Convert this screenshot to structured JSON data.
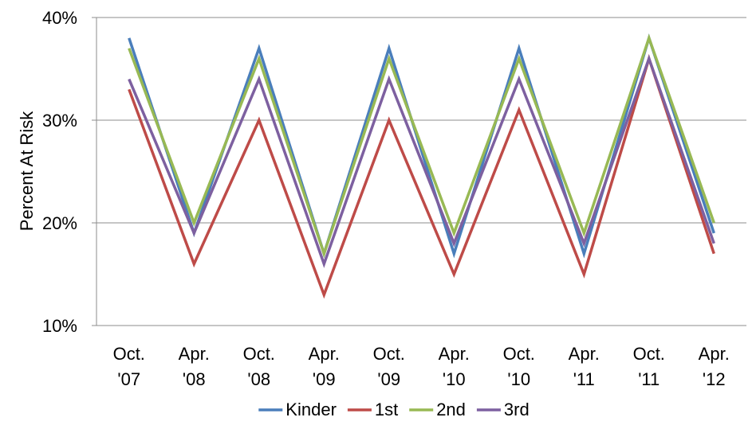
{
  "chart_data": {
    "type": "line",
    "title": "",
    "xlabel": "",
    "ylabel": "Percent At Risk",
    "categories": [
      [
        "Oct.",
        "'07"
      ],
      [
        "Apr.",
        "'08"
      ],
      [
        "Oct.",
        "'08"
      ],
      [
        "Apr.",
        "'09"
      ],
      [
        "Oct.",
        "'09"
      ],
      [
        "Apr.",
        "'10"
      ],
      [
        "Oct.",
        "'10"
      ],
      [
        "Apr.",
        "'11"
      ],
      [
        "Oct.",
        "'11"
      ],
      [
        "Apr.",
        "'12"
      ]
    ],
    "ylim": [
      10,
      40
    ],
    "yticks": [
      10,
      20,
      30,
      40
    ],
    "ytick_labels": [
      "10%",
      "20%",
      "30%",
      "40%"
    ],
    "grid": "horizontal",
    "legend_position": "bottom",
    "series": [
      {
        "name": "Kinder",
        "color": "#4a7ebb",
        "values": [
          38,
          19,
          37,
          17,
          37,
          17,
          37,
          17,
          38,
          19
        ]
      },
      {
        "name": "1st",
        "color": "#be4b48",
        "values": [
          33,
          16,
          30,
          13,
          30,
          15,
          31,
          15,
          36,
          17
        ]
      },
      {
        "name": "2nd",
        "color": "#98b954",
        "values": [
          37,
          20,
          36,
          17,
          36,
          19,
          36,
          19,
          38,
          20
        ]
      },
      {
        "name": "3rd",
        "color": "#7d60a0",
        "values": [
          34,
          19,
          34,
          16,
          34,
          18,
          34,
          18,
          36,
          18
        ]
      }
    ]
  }
}
